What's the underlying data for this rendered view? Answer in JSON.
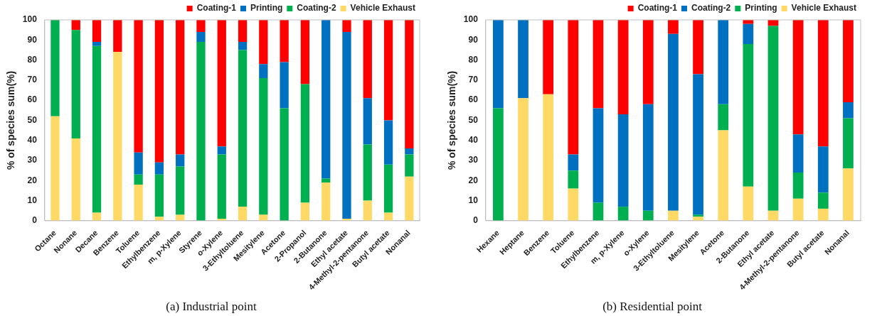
{
  "chart_data": [
    {
      "type": "bar",
      "stacked": true,
      "title": "(a) Industrial point",
      "ylabel": "% of species sum(%)",
      "legend": "top right",
      "ylim": [
        0,
        100
      ],
      "yticks": [
        0,
        10,
        20,
        30,
        40,
        50,
        60,
        70,
        80,
        90,
        100
      ],
      "categories": [
        "Octane",
        "Nonane",
        "Decane",
        "Benzene",
        "Toluene",
        "Ethylbenzene",
        "m, p-Xylene",
        "Styrene",
        "o-Xylene",
        "3-Ethyltoluene",
        "Mesitylene",
        "Acetone",
        "2-Propanol",
        "2-Butanone",
        "Ethyl acetate",
        "4-Methyl-2-pentanone",
        "Butyl acetate",
        "Nonanal"
      ],
      "series": [
        {
          "name": "Vehicle Exhaust",
          "color": "#ffd966",
          "values": [
            52,
            41,
            4,
            84,
            18,
            2,
            3,
            0,
            1,
            7,
            3,
            0,
            9,
            19,
            1,
            10,
            4,
            22
          ]
        },
        {
          "name": "Coating-2",
          "color": "#00b050",
          "values": [
            48,
            54,
            83,
            0,
            5,
            21,
            24,
            89,
            32,
            78,
            68,
            56,
            59,
            2,
            0,
            28,
            24,
            11
          ]
        },
        {
          "name": "Printing",
          "color": "#0070c0",
          "values": [
            0,
            0,
            2,
            0,
            11,
            6,
            6,
            5,
            4,
            4,
            7,
            23,
            0,
            79,
            93,
            23,
            22,
            3
          ]
        },
        {
          "name": "Coating-1",
          "color": "#ff0000",
          "values": [
            0,
            5,
            11,
            16,
            66,
            71,
            67,
            6,
            63,
            11,
            22,
            21,
            32,
            0,
            6,
            39,
            50,
            64
          ]
        }
      ]
    },
    {
      "type": "bar",
      "stacked": true,
      "title": "(b) Residential point",
      "ylabel": "% of species sum(%)",
      "legend": "top right",
      "ylim": [
        0,
        100
      ],
      "yticks": [
        0,
        10,
        20,
        30,
        40,
        50,
        60,
        70,
        80,
        90,
        100
      ],
      "categories": [
        "Hexane",
        "Heptane",
        "Benzene",
        "Toluene",
        "Ethylbenzene",
        "m, p-Xylene",
        "o-Xylene",
        "3-Ethyltoluene",
        "Mesitylene",
        "Acetone",
        "2-Butanone",
        "Ethyl acetate",
        "4-Methyl-2-pentanone",
        "Butyl acetate",
        "Nonanal"
      ],
      "series": [
        {
          "name": "Vehicle Exhaust",
          "color": "#ffd966",
          "values": [
            0,
            61,
            63,
            16,
            0,
            0,
            0,
            5,
            2,
            45,
            17,
            5,
            11,
            6,
            26
          ]
        },
        {
          "name": "Printing",
          "color": "#00b050",
          "values": [
            56,
            0,
            0,
            9,
            9,
            7,
            5,
            0,
            1,
            13,
            71,
            92,
            13,
            8,
            25
          ]
        },
        {
          "name": "Coating-2",
          "color": "#0070c0",
          "values": [
            44,
            39,
            0,
            8,
            47,
            46,
            53,
            88,
            70,
            42,
            10,
            0,
            19,
            23,
            8
          ]
        },
        {
          "name": "Coating-1",
          "color": "#ff0000",
          "values": [
            0,
            0,
            37,
            67,
            44,
            47,
            42,
            7,
            27,
            0,
            2,
            3,
            57,
            63,
            41
          ]
        }
      ]
    }
  ]
}
